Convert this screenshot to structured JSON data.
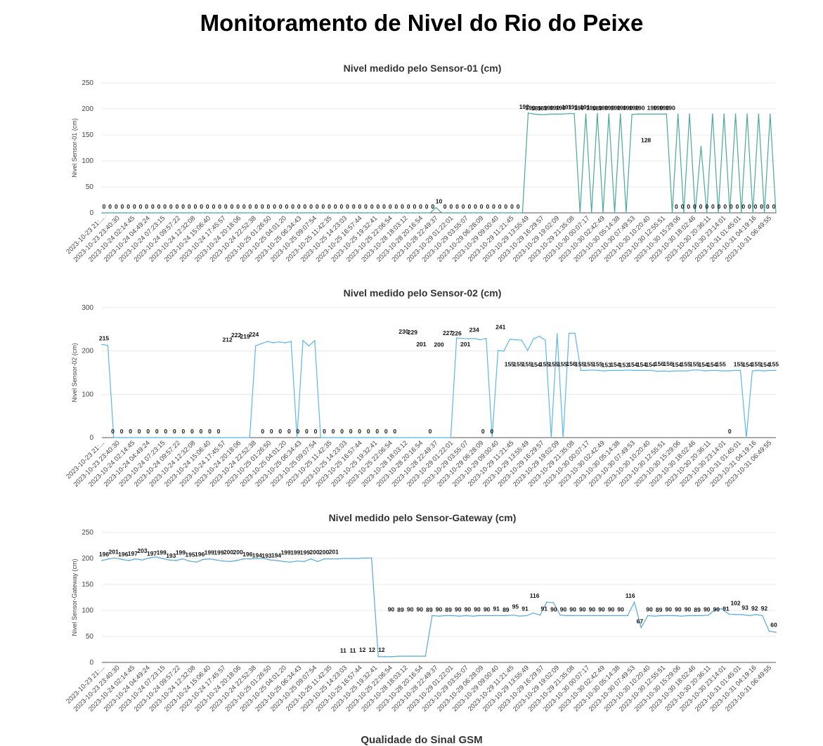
{
  "page": {
    "title": "Monitoramento de Nivel do Rio do Peixe",
    "next_section_title": "Qualidade do Sinal GSM"
  },
  "x_tick_labels": [
    "2023-10-23 21:...",
    "2023-10-23 23:40:30",
    "2023-10-24 02:14:45",
    "2023-10-24 04:49:24",
    "2023-10-24 07:23:15",
    "2023-10-24 09:57:22",
    "2023-10-24 12:32:08",
    "2023-10-24 15:06:40",
    "2023-10-24 17:45:57",
    "2023-10-24 20:18:06",
    "2023-10-24 22:52:38",
    "2023-10-25 01:26:50",
    "2023-10-25 04:01:20",
    "2023-10-25 06:34:43",
    "2023-10-25 09:07:54",
    "2023-10-25 11:42:35",
    "2023-10-25 14:23:03",
    "2023-10-25 16:57:44",
    "2023-10-25 19:32:41",
    "2023-10-25 22:06:54",
    "2023-10-28 18:03:12",
    "2023-10-28 20:16:54",
    "2023-10-28 22:49:37",
    "2023-10-29 01:22:01",
    "2023-10-29 03:55:07",
    "2023-10-29 06:28:09",
    "2023-10-29 09:00:40",
    "2023-10-29 11:21:45",
    "2023-10-29 13:55:49",
    "2023-10-29 16:29:57",
    "2023-10-29 19:02:09",
    "2023-10-29 21:35:08",
    "2023-10-30 00:07:17",
    "2023-10-30 02:42:49",
    "2023-10-30 05:14:38",
    "2023-10-30 07:49:53",
    "2023-10-30 10:20:40",
    "2023-10-30 12:55:51",
    "2023-10-30 15:29:06",
    "2023-10-30 18:02:46",
    "2023-10-30 20:36:11",
    "2023-10-30 23:14:01",
    "2023-10-31 01:45:01",
    "2023-10-31 04:19:16",
    "2023-10-31 06:49:55"
  ],
  "chart_data": [
    {
      "type": "line",
      "title": "Nivel medido pelo Sensor-01 (cm)",
      "ylabel": "Nivel Sensor-01 (cm)",
      "xlabel": "",
      "ylim": [
        0,
        250
      ],
      "yticks": [
        0,
        50,
        100,
        150,
        200,
        250
      ],
      "color": "#4aa89c",
      "grid": true,
      "values": [
        0,
        0,
        0,
        0,
        0,
        0,
        0,
        0,
        0,
        0,
        0,
        0,
        0,
        0,
        0,
        0,
        0,
        0,
        0,
        0,
        0,
        0,
        0,
        0,
        0,
        0,
        0,
        0,
        0,
        0,
        0,
        0,
        0,
        0,
        0,
        0,
        0,
        0,
        0,
        0,
        0,
        0,
        0,
        0,
        0,
        0,
        0,
        0,
        0,
        0,
        0,
        0,
        0,
        0,
        0,
        0,
        0,
        0,
        10,
        0,
        0,
        0,
        0,
        0,
        0,
        0,
        0,
        0,
        0,
        0,
        0,
        0,
        0,
        0,
        192,
        190,
        189,
        189,
        190,
        190,
        190,
        191,
        191,
        0,
        190,
        0,
        191,
        0,
        190,
        0,
        190,
        0,
        189,
        190,
        190,
        190,
        190,
        190,
        190,
        0,
        190,
        0,
        190,
        0,
        128,
        0,
        190,
        0,
        190,
        0,
        190,
        0,
        190,
        0,
        190,
        0,
        190,
        0
      ],
      "labels_shown": [
        0,
        0,
        0,
        0,
        0,
        0,
        0,
        0,
        0,
        0,
        0,
        0,
        0,
        0,
        0,
        0,
        0,
        0,
        0,
        0,
        0,
        0,
        0,
        0,
        0,
        0,
        0,
        0,
        0,
        0,
        0,
        0,
        0,
        0,
        0,
        0,
        0,
        0,
        0,
        0,
        0,
        0,
        0,
        0,
        0,
        0,
        0,
        0,
        0,
        0,
        0,
        0,
        0,
        0,
        0,
        10,
        0,
        0,
        0,
        0,
        0,
        0,
        0,
        0,
        0,
        0,
        0,
        0,
        0,
        192,
        190,
        189,
        189,
        190,
        190,
        190,
        191,
        191,
        190,
        191,
        190,
        189,
        190,
        190,
        190,
        190,
        190,
        190,
        190,
        128,
        190,
        190,
        190,
        190,
        0,
        0,
        0,
        0,
        0,
        0,
        0,
        0,
        0,
        0,
        0,
        0,
        0,
        0,
        0,
        0,
        0
      ]
    },
    {
      "type": "line",
      "title": "Nivel medido pelo Sensor-02 (cm)",
      "ylabel": "Nivel Sensor-02 (cm)",
      "xlabel": "",
      "ylim": [
        0,
        300
      ],
      "yticks": [
        0,
        100,
        200,
        300
      ],
      "color": "#5bb8e8",
      "grid": true,
      "values": [
        215,
        213,
        0,
        0,
        0,
        0,
        0,
        0,
        0,
        0,
        0,
        0,
        0,
        0,
        0,
        0,
        0,
        0,
        0,
        0,
        0,
        0,
        0,
        0,
        0,
        0,
        212,
        217,
        222,
        219,
        221,
        219,
        222,
        0,
        224,
        212,
        224,
        0,
        0,
        0,
        0,
        0,
        0,
        0,
        0,
        0,
        0,
        0,
        0,
        0,
        0,
        0,
        0,
        0,
        0,
        0,
        0,
        0,
        0,
        0,
        230,
        229,
        228,
        229,
        226,
        229,
        0,
        201,
        200,
        227,
        226,
        225,
        201,
        228,
        234,
        225,
        0,
        240,
        0,
        241,
        241,
        155,
        155,
        156,
        155,
        154,
        155,
        155,
        155,
        156,
        155,
        155,
        155,
        155,
        153,
        154,
        153,
        154,
        154,
        154,
        156,
        156,
        154,
        155,
        155,
        154,
        154,
        155,
        155,
        0,
        154,
        155,
        154,
        155,
        155
      ],
      "labels_shown": [
        215,
        0,
        0,
        0,
        0,
        0,
        0,
        0,
        0,
        0,
        0,
        0,
        0,
        0,
        212,
        222,
        219,
        224,
        0,
        0,
        0,
        0,
        0,
        0,
        0,
        0,
        0,
        0,
        0,
        0,
        0,
        0,
        0,
        0,
        230,
        229,
        201,
        0,
        200,
        227,
        226,
        201,
        234,
        0,
        0,
        241,
        155,
        155,
        155,
        154,
        155,
        155,
        155,
        156,
        155,
        155,
        155,
        153,
        154,
        153,
        154,
        154,
        154,
        156,
        156,
        154,
        155,
        155,
        154,
        154,
        155,
        0,
        155,
        154,
        155,
        154,
        155
      ]
    },
    {
      "type": "line",
      "title": "Nivel medido pelo Sensor-Gateway (cm)",
      "ylabel": "Nivel Sensor-Gateway (cm)",
      "xlabel": "",
      "ylim": [
        0,
        250
      ],
      "yticks": [
        0,
        50,
        100,
        150,
        200,
        250
      ],
      "color": "#5aaad8",
      "grid": true,
      "values": [
        196,
        199,
        201,
        198,
        196,
        199,
        197,
        201,
        203,
        200,
        197,
        196,
        199,
        195,
        193,
        198,
        199,
        197,
        195,
        194,
        196,
        199,
        199,
        200,
        200,
        197,
        196,
        194,
        193,
        195,
        194,
        199,
        194,
        199,
        199,
        199,
        200,
        200,
        200,
        201,
        201,
        11,
        11,
        11,
        12,
        12,
        12,
        12,
        12,
        90,
        89,
        90,
        90,
        89,
        90,
        89,
        90,
        90,
        90,
        90,
        90,
        91,
        89,
        90,
        95,
        91,
        116,
        115,
        91,
        90,
        90,
        90,
        90,
        90,
        90,
        90,
        90,
        90,
        90,
        116,
        67,
        90,
        89,
        90,
        90,
        90,
        89,
        90,
        90,
        90,
        91,
        102,
        103,
        93,
        92,
        92,
        90,
        92,
        90,
        60,
        58
      ],
      "labels_shown": [
        196,
        201,
        196,
        197,
        203,
        197,
        199,
        193,
        199,
        195,
        196,
        199,
        199,
        200,
        200,
        196,
        194,
        193,
        194,
        199,
        199,
        199,
        200,
        200,
        201,
        11,
        11,
        12,
        12,
        12,
        90,
        89,
        90,
        90,
        89,
        90,
        89,
        90,
        90,
        90,
        90,
        91,
        89,
        95,
        91,
        116,
        91,
        90,
        90,
        90,
        90,
        90,
        90,
        90,
        90,
        116,
        67,
        90,
        89,
        90,
        90,
        90,
        89,
        90,
        90,
        91,
        102,
        93,
        92,
        92,
        60
      ]
    }
  ]
}
